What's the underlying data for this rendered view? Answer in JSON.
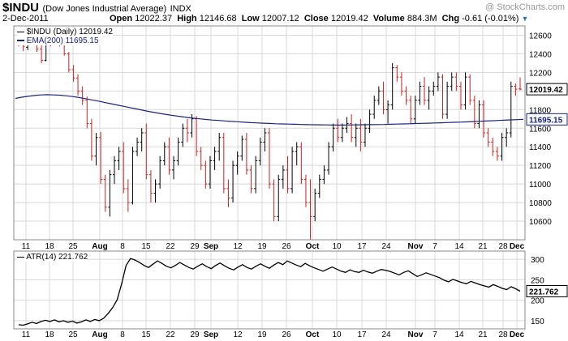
{
  "header": {
    "symbol": "$INDU",
    "name": "(Dow Jones Industrial Average)",
    "exchange": "INDX",
    "watermark": "@ StockCharts.com",
    "date": "2-Dec-2011",
    "open_label": "Open",
    "open": "12022.37",
    "high_label": "High",
    "high": "12146.68",
    "low_label": "Low",
    "low": "12007.12",
    "close_label": "Close",
    "close": "12019.42",
    "volume_label": "Volume",
    "volume": "884.3M",
    "chg_label": "Chg",
    "chg": "-0.61 (-0.01%)"
  },
  "price_legend": {
    "series": "$INDU (Daily) 12019.42",
    "ema": "EMA(200) 11695.15"
  },
  "atr_legend": "ATR(14) 221.762",
  "colors": {
    "up": "#000000",
    "down": "#cc2222",
    "ema": "#1a237e",
    "grid": "#d8d8d8",
    "tag_bg": "#ffffff"
  },
  "chart_data": [
    {
      "type": "ohlc",
      "ylim": [
        10400,
        12700
      ],
      "y_ticks": [
        10600,
        10800,
        11000,
        11200,
        11400,
        11600,
        11800,
        12000,
        12200,
        12400,
        12600
      ],
      "x_labels": [
        "11",
        "18",
        "25",
        "Aug",
        "8",
        "15",
        "22",
        "29",
        "Sep",
        "12",
        "19",
        "26",
        "Oct",
        "10",
        "17",
        "24",
        "Nov",
        "7",
        "14",
        "21",
        "28",
        "Dec"
      ],
      "last_value_tag": "12019.42",
      "ema_value_tag": "11695.15",
      "ohlc": [
        [
          12600,
          12650,
          12480,
          12520
        ],
        [
          12520,
          12560,
          12430,
          12480
        ],
        [
          12470,
          12600,
          12440,
          12580
        ],
        [
          12560,
          12620,
          12500,
          12540
        ],
        [
          12540,
          12580,
          12420,
          12450
        ],
        [
          12450,
          12510,
          12300,
          12330
        ],
        [
          12330,
          12600,
          12320,
          12580
        ],
        [
          12580,
          12620,
          12480,
          12560
        ],
        [
          12560,
          12680,
          12530,
          12600
        ],
        [
          12600,
          12630,
          12480,
          12500
        ],
        [
          12500,
          12540,
          12380,
          12400
        ],
        [
          12400,
          12420,
          12200,
          12230
        ],
        [
          12230,
          12280,
          12100,
          12140
        ],
        [
          12140,
          12180,
          11950,
          12000
        ],
        [
          12000,
          12050,
          11850,
          11900
        ],
        [
          11900,
          11940,
          11600,
          11650
        ],
        [
          11650,
          11700,
          11250,
          11300
        ],
        [
          11300,
          11550,
          11200,
          11500
        ],
        [
          11500,
          11560,
          11000,
          11050
        ],
        [
          11050,
          11100,
          10700,
          10750
        ],
        [
          10750,
          11150,
          10650,
          11100
        ],
        [
          11100,
          11300,
          11000,
          11250
        ],
        [
          11250,
          11400,
          11150,
          11350
        ],
        [
          11350,
          11450,
          10900,
          10950
        ],
        [
          10950,
          11050,
          10700,
          10800
        ],
        [
          10800,
          11400,
          10780,
          11350
        ],
        [
          11350,
          11500,
          11300,
          11450
        ],
        [
          11450,
          11600,
          11350,
          11550
        ],
        [
          11550,
          11650,
          11050,
          11100
        ],
        [
          11100,
          11150,
          10800,
          10900
        ],
        [
          10900,
          11050,
          10800,
          11000
        ],
        [
          11000,
          11300,
          10950,
          11250
        ],
        [
          11250,
          11450,
          11200,
          11400
        ],
        [
          11400,
          11500,
          11100,
          11150
        ],
        [
          11150,
          11300,
          11050,
          11250
        ],
        [
          11250,
          11500,
          11200,
          11450
        ],
        [
          11450,
          11650,
          11400,
          11600
        ],
        [
          11600,
          11700,
          11450,
          11550
        ],
        [
          11550,
          11750,
          11500,
          11700
        ],
        [
          11700,
          11730,
          11300,
          11350
        ],
        [
          11350,
          11400,
          11150,
          11200
        ],
        [
          11200,
          11250,
          10950,
          11000
        ],
        [
          11000,
          11300,
          10950,
          11250
        ],
        [
          11250,
          11400,
          11150,
          11350
        ],
        [
          11350,
          11550,
          11250,
          11500
        ],
        [
          11500,
          11550,
          10900,
          10950
        ],
        [
          10950,
          11050,
          10750,
          10850
        ],
        [
          10850,
          11250,
          10800,
          11200
        ],
        [
          11200,
          11350,
          11100,
          11300
        ],
        [
          11300,
          11520,
          11250,
          11480
        ],
        [
          11480,
          11550,
          11100,
          11150
        ],
        [
          11150,
          11200,
          10900,
          10950
        ],
        [
          10950,
          11300,
          10900,
          11250
        ],
        [
          11250,
          11500,
          11200,
          11450
        ],
        [
          11450,
          11600,
          11350,
          11550
        ],
        [
          11550,
          11600,
          10950,
          11000
        ],
        [
          11000,
          11050,
          10600,
          10650
        ],
        [
          10650,
          11100,
          10600,
          11050
        ],
        [
          11050,
          11200,
          10950,
          11150
        ],
        [
          11150,
          11300,
          10900,
          10950
        ],
        [
          10950,
          11400,
          10900,
          11350
        ],
        [
          11350,
          11450,
          11200,
          11400
        ],
        [
          11400,
          11450,
          11000,
          11050
        ],
        [
          11050,
          11100,
          10750,
          10800
        ],
        [
          10800,
          11050,
          10400,
          10650
        ],
        [
          10650,
          10950,
          10600,
          10900
        ],
        [
          10900,
          11100,
          10850,
          11050
        ],
        [
          11050,
          11200,
          11000,
          11150
        ],
        [
          11150,
          11450,
          11100,
          11400
        ],
        [
          11400,
          11650,
          11350,
          11600
        ],
        [
          11600,
          11700,
          11450,
          11500
        ],
        [
          11500,
          11650,
          11450,
          11600
        ],
        [
          11600,
          11720,
          11550,
          11650
        ],
        [
          11650,
          11750,
          11450,
          11500
        ],
        [
          11500,
          11650,
          11400,
          11600
        ],
        [
          11600,
          11700,
          11350,
          11450
        ],
        [
          11450,
          11650,
          11400,
          11600
        ],
        [
          11600,
          11800,
          11550,
          11750
        ],
        [
          11750,
          11950,
          11700,
          11900
        ],
        [
          11900,
          12050,
          11850,
          12000
        ],
        [
          12000,
          12100,
          11750,
          11800
        ],
        [
          11800,
          11900,
          11650,
          11850
        ],
        [
          11850,
          12300,
          11800,
          12250
        ],
        [
          12250,
          12280,
          12100,
          12150
        ],
        [
          12150,
          12200,
          11950,
          12000
        ],
        [
          12000,
          12050,
          11850,
          11900
        ],
        [
          11900,
          11950,
          11650,
          11700
        ],
        [
          11700,
          11950,
          11650,
          11900
        ],
        [
          11900,
          12100,
          11850,
          12050
        ],
        [
          12050,
          12150,
          11850,
          11900
        ],
        [
          11900,
          12050,
          11800,
          12000
        ],
        [
          12000,
          12100,
          11950,
          12050
        ],
        [
          12050,
          12200,
          12000,
          12150
        ],
        [
          12150,
          12180,
          11700,
          11750
        ],
        [
          11750,
          12100,
          11700,
          12050
        ],
        [
          12050,
          12200,
          12000,
          12150
        ],
        [
          12150,
          12200,
          12000,
          12050
        ],
        [
          12050,
          12100,
          11800,
          11850
        ],
        [
          11850,
          12200,
          11800,
          12150
        ],
        [
          12150,
          12180,
          11850,
          11900
        ],
        [
          11900,
          11950,
          11600,
          11650
        ],
        [
          11650,
          11900,
          11600,
          11850
        ],
        [
          11850,
          11900,
          11500,
          11550
        ],
        [
          11550,
          11600,
          11400,
          11450
        ],
        [
          11450,
          11500,
          11300,
          11350
        ],
        [
          11350,
          11400,
          11250,
          11300
        ],
        [
          11300,
          11550,
          11250,
          11500
        ],
        [
          11500,
          11600,
          11400,
          11550
        ],
        [
          11550,
          12100,
          11500,
          12050
        ],
        [
          12050,
          12080,
          11950,
          12020
        ],
        [
          12022.37,
          12146.68,
          12007.12,
          12019.42
        ]
      ],
      "ema200": [
        11920,
        11933,
        11943,
        11952,
        11958,
        11960,
        11958,
        11955,
        11948,
        11940,
        11930,
        11918,
        11905,
        11892,
        11878,
        11864,
        11850,
        11836,
        11822,
        11808,
        11794,
        11780,
        11768,
        11756,
        11745,
        11735,
        11725,
        11716,
        11708,
        11701,
        11694,
        11688,
        11683,
        11678,
        11673,
        11669,
        11664,
        11660,
        11657,
        11654,
        11651,
        11648,
        11646,
        11644,
        11642,
        11640,
        11638,
        11637,
        11636,
        11635,
        11634,
        11634,
        11634,
        11635,
        11636,
        11637,
        11638,
        11639,
        11640,
        11642,
        11644,
        11646,
        11648,
        11650,
        11652,
        11654,
        11656,
        11658,
        11661,
        11663,
        11665,
        11668,
        11671,
        11674,
        11677,
        11680,
        11683,
        11686,
        11689,
        11692,
        11695.15
      ]
    },
    {
      "type": "line",
      "name": "ATR(14)",
      "ylim": [
        130,
        320
      ],
      "y_ticks": [
        150,
        200,
        250,
        300
      ],
      "last_value_tag": "221.762",
      "values": [
        140,
        139,
        142,
        146,
        143,
        148,
        151,
        148,
        152,
        147,
        150,
        146,
        149,
        144,
        147,
        152,
        148,
        153,
        150,
        156,
        168,
        182,
        201,
        240,
        285,
        302,
        298,
        292,
        285,
        280,
        288,
        296,
        290,
        283,
        279,
        285,
        292,
        286,
        280,
        276,
        283,
        289,
        282,
        277,
        285,
        291,
        284,
        278,
        274,
        281,
        287,
        280,
        276,
        283,
        289,
        283,
        278,
        286,
        292,
        287,
        296,
        291,
        286,
        282,
        290,
        284,
        279,
        275,
        271,
        276,
        281,
        276,
        271,
        268,
        274,
        270,
        268,
        273,
        269,
        266,
        271,
        275,
        273,
        270,
        266,
        262,
        268,
        272,
        265,
        258,
        262,
        267,
        263,
        259,
        255,
        249,
        245,
        251,
        247,
        243,
        240,
        246,
        242,
        238,
        235,
        232,
        238,
        234,
        229,
        226,
        233,
        228,
        222
      ]
    }
  ]
}
